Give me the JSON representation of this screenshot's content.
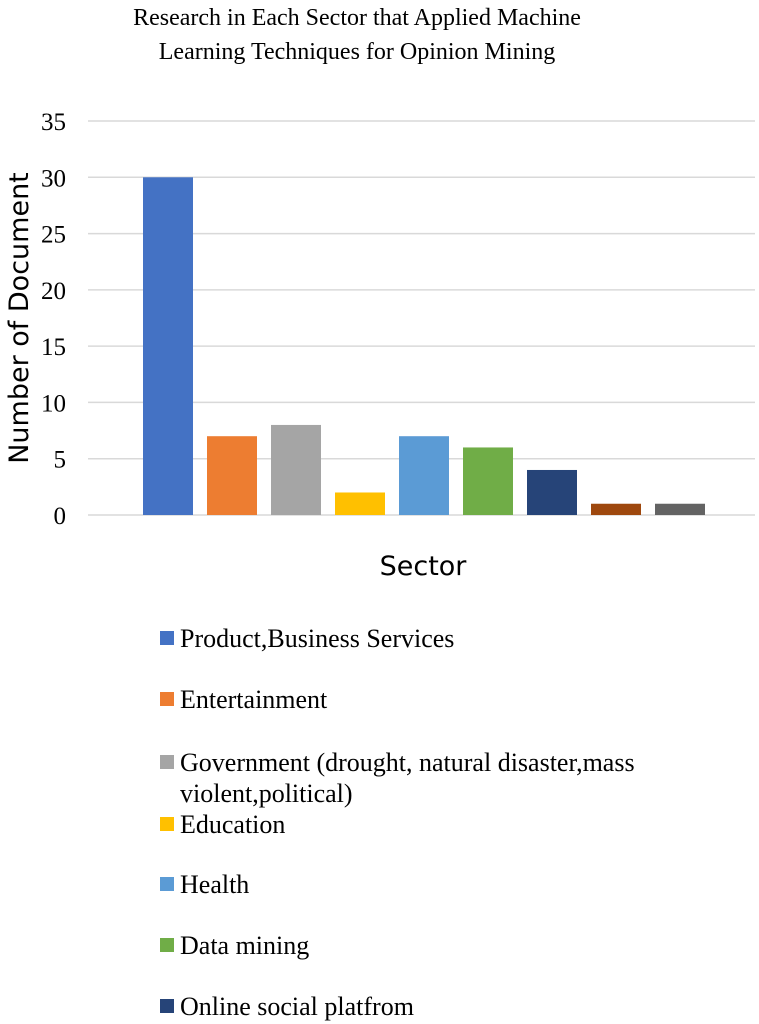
{
  "chart_data": {
    "type": "bar",
    "title_lines": [
      "Research in Each Sector that Applied Machine",
      "Learning Techniques for Opinion Mining"
    ],
    "xlabel": "Sector",
    "ylabel": "Number of Document",
    "ylim": [
      0,
      35
    ],
    "yticks": [
      0,
      5,
      10,
      15,
      20,
      25,
      30,
      35
    ],
    "grid": true,
    "legend_position": "bottom",
    "series": [
      {
        "name": "Product,Business Services",
        "value": 30,
        "color": "#4472C4"
      },
      {
        "name": "Entertainment",
        "value": 7,
        "color": "#ED7D31"
      },
      {
        "name": "Government (drought,  natural disaster,mass violent,political)",
        "value": 8,
        "color": "#A5A5A5"
      },
      {
        "name": "Education",
        "value": 2,
        "color": "#FFC000"
      },
      {
        "name": "Health",
        "value": 7,
        "color": "#5B9BD5"
      },
      {
        "name": "Data mining",
        "value": 6,
        "color": "#70AD47"
      },
      {
        "name": "Online social platfrom",
        "value": 4,
        "color": "#264478"
      },
      {
        "name": "",
        "value": 1,
        "color": "#9E480E"
      },
      {
        "name": "",
        "value": 1,
        "color": "#636363"
      }
    ]
  }
}
